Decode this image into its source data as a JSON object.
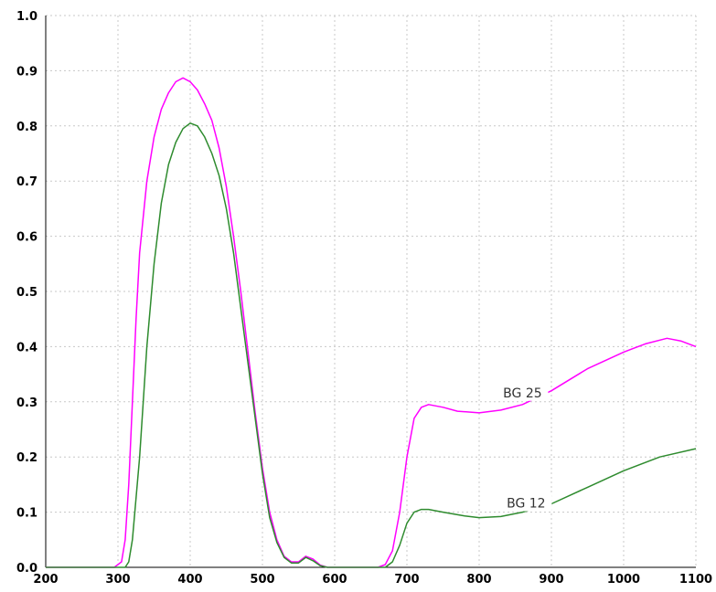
{
  "chart_data": {
    "type": "line",
    "title": "",
    "xlabel": "",
    "ylabel": "",
    "xlim": [
      200,
      1100
    ],
    "ylim": [
      0,
      1.0
    ],
    "x_ticks": [
      "200",
      "300",
      "400",
      "500",
      "600",
      "700",
      "800",
      "900",
      "1000",
      "1100"
    ],
    "y_ticks": [
      "0.0",
      "0.1",
      "0.2",
      "0.3",
      "0.4",
      "0.5",
      "0.6",
      "0.7",
      "0.8",
      "0.9",
      "1.0"
    ],
    "grid": true,
    "series": [
      {
        "name": "BG 25",
        "color": "#ff00ff",
        "label_at": [
          860,
          0.31
        ],
        "points": [
          [
            200,
            0
          ],
          [
            295,
            0
          ],
          [
            305,
            0.01
          ],
          [
            310,
            0.05
          ],
          [
            315,
            0.15
          ],
          [
            320,
            0.3
          ],
          [
            325,
            0.45
          ],
          [
            330,
            0.57
          ],
          [
            340,
            0.7
          ],
          [
            350,
            0.78
          ],
          [
            360,
            0.83
          ],
          [
            370,
            0.86
          ],
          [
            380,
            0.88
          ],
          [
            390,
            0.887
          ],
          [
            400,
            0.88
          ],
          [
            410,
            0.865
          ],
          [
            420,
            0.84
          ],
          [
            430,
            0.81
          ],
          [
            440,
            0.76
          ],
          [
            450,
            0.69
          ],
          [
            460,
            0.6
          ],
          [
            470,
            0.5
          ],
          [
            480,
            0.39
          ],
          [
            490,
            0.28
          ],
          [
            500,
            0.18
          ],
          [
            510,
            0.1
          ],
          [
            520,
            0.05
          ],
          [
            530,
            0.02
          ],
          [
            540,
            0.01
          ],
          [
            550,
            0.01
          ],
          [
            560,
            0.02
          ],
          [
            570,
            0.015
          ],
          [
            580,
            0.004
          ],
          [
            590,
            0
          ],
          [
            660,
            0
          ],
          [
            670,
            0.005
          ],
          [
            680,
            0.03
          ],
          [
            690,
            0.1
          ],
          [
            700,
            0.2
          ],
          [
            710,
            0.27
          ],
          [
            720,
            0.29
          ],
          [
            730,
            0.295
          ],
          [
            750,
            0.29
          ],
          [
            770,
            0.283
          ],
          [
            800,
            0.28
          ],
          [
            830,
            0.285
          ],
          [
            860,
            0.295
          ],
          [
            900,
            0.32
          ],
          [
            950,
            0.36
          ],
          [
            1000,
            0.39
          ],
          [
            1030,
            0.405
          ],
          [
            1060,
            0.415
          ],
          [
            1080,
            0.41
          ],
          [
            1100,
            0.4
          ]
        ]
      },
      {
        "name": "BG 12",
        "color": "#2e8b2e",
        "label_at": [
          865,
          0.11
        ],
        "points": [
          [
            200,
            0
          ],
          [
            310,
            0
          ],
          [
            315,
            0.01
          ],
          [
            320,
            0.05
          ],
          [
            330,
            0.2
          ],
          [
            340,
            0.4
          ],
          [
            350,
            0.55
          ],
          [
            360,
            0.66
          ],
          [
            370,
            0.73
          ],
          [
            380,
            0.77
          ],
          [
            390,
            0.795
          ],
          [
            400,
            0.805
          ],
          [
            410,
            0.8
          ],
          [
            420,
            0.78
          ],
          [
            430,
            0.75
          ],
          [
            440,
            0.71
          ],
          [
            450,
            0.65
          ],
          [
            460,
            0.57
          ],
          [
            470,
            0.47
          ],
          [
            480,
            0.37
          ],
          [
            490,
            0.27
          ],
          [
            500,
            0.17
          ],
          [
            510,
            0.09
          ],
          [
            520,
            0.045
          ],
          [
            530,
            0.018
          ],
          [
            540,
            0.008
          ],
          [
            550,
            0.008
          ],
          [
            560,
            0.018
          ],
          [
            570,
            0.012
          ],
          [
            580,
            0.003
          ],
          [
            590,
            0
          ],
          [
            670,
            0
          ],
          [
            680,
            0.01
          ],
          [
            690,
            0.04
          ],
          [
            700,
            0.08
          ],
          [
            710,
            0.1
          ],
          [
            720,
            0.105
          ],
          [
            730,
            0.105
          ],
          [
            750,
            0.1
          ],
          [
            780,
            0.093
          ],
          [
            800,
            0.09
          ],
          [
            830,
            0.092
          ],
          [
            860,
            0.1
          ],
          [
            900,
            0.115
          ],
          [
            950,
            0.145
          ],
          [
            1000,
            0.175
          ],
          [
            1050,
            0.2
          ],
          [
            1100,
            0.215
          ]
        ]
      }
    ]
  }
}
